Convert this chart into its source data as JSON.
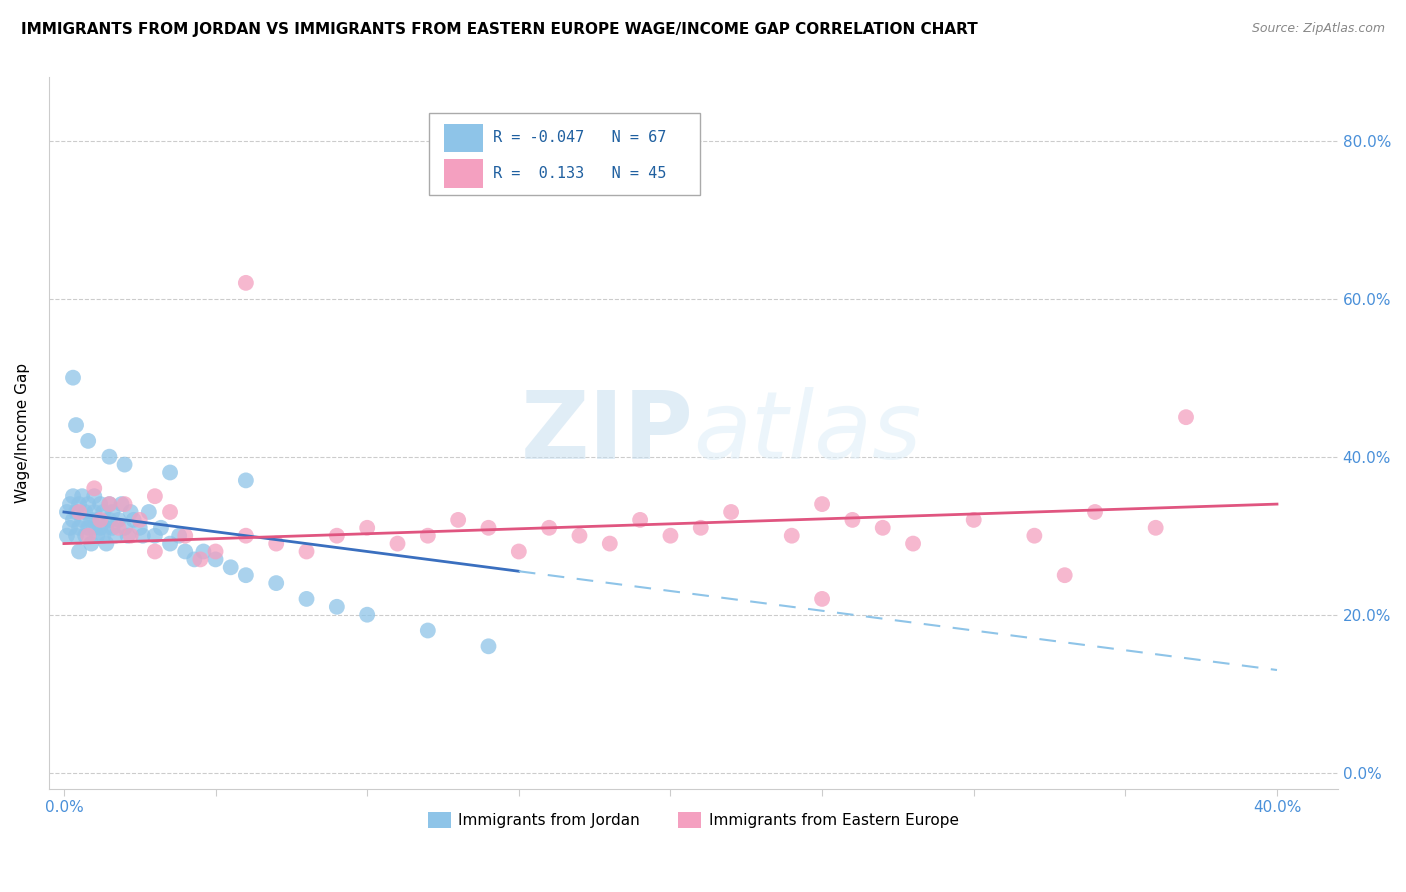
{
  "title": "IMMIGRANTS FROM JORDAN VS IMMIGRANTS FROM EASTERN EUROPE WAGE/INCOME GAP CORRELATION CHART",
  "source": "Source: ZipAtlas.com",
  "ylabel": "Wage/Income Gap",
  "ytick_vals": [
    0.0,
    0.2,
    0.4,
    0.6,
    0.8
  ],
  "ytick_labels": [
    "0.0%",
    "20.0%",
    "40.0%",
    "60.0%",
    "80.0%"
  ],
  "color_jordan": "#8ec4e8",
  "color_eastern": "#f4a0c0",
  "color_jordan_line": "#3a6fbf",
  "color_eastern_line": "#e05580",
  "color_jordan_dash": "#8ec4e8",
  "watermark_color": "#ddeef8",
  "jordan_x": [
    0.001,
    0.001,
    0.002,
    0.002,
    0.003,
    0.003,
    0.004,
    0.004,
    0.005,
    0.005,
    0.005,
    0.006,
    0.006,
    0.007,
    0.007,
    0.008,
    0.008,
    0.009,
    0.009,
    0.01,
    0.01,
    0.01,
    0.011,
    0.011,
    0.012,
    0.012,
    0.013,
    0.013,
    0.014,
    0.014,
    0.015,
    0.015,
    0.016,
    0.016,
    0.017,
    0.018,
    0.019,
    0.02,
    0.021,
    0.022,
    0.023,
    0.025,
    0.026,
    0.028,
    0.03,
    0.032,
    0.035,
    0.038,
    0.04,
    0.043,
    0.046,
    0.05,
    0.055,
    0.06,
    0.07,
    0.08,
    0.09,
    0.1,
    0.12,
    0.14,
    0.003,
    0.004,
    0.008,
    0.015,
    0.02,
    0.035,
    0.06
  ],
  "jordan_y": [
    0.3,
    0.33,
    0.31,
    0.34,
    0.32,
    0.35,
    0.3,
    0.33,
    0.31,
    0.34,
    0.28,
    0.32,
    0.35,
    0.3,
    0.33,
    0.31,
    0.34,
    0.32,
    0.29,
    0.31,
    0.33,
    0.35,
    0.3,
    0.32,
    0.31,
    0.34,
    0.3,
    0.33,
    0.31,
    0.29,
    0.32,
    0.34,
    0.31,
    0.33,
    0.3,
    0.32,
    0.34,
    0.31,
    0.3,
    0.33,
    0.32,
    0.31,
    0.3,
    0.33,
    0.3,
    0.31,
    0.29,
    0.3,
    0.28,
    0.27,
    0.28,
    0.27,
    0.26,
    0.25,
    0.24,
    0.22,
    0.21,
    0.2,
    0.18,
    0.16,
    0.5,
    0.44,
    0.42,
    0.4,
    0.39,
    0.38,
    0.37
  ],
  "eastern_x": [
    0.005,
    0.008,
    0.012,
    0.015,
    0.018,
    0.022,
    0.025,
    0.03,
    0.035,
    0.04,
    0.05,
    0.06,
    0.07,
    0.08,
    0.09,
    0.1,
    0.11,
    0.12,
    0.13,
    0.14,
    0.15,
    0.16,
    0.17,
    0.18,
    0.19,
    0.2,
    0.21,
    0.22,
    0.24,
    0.25,
    0.26,
    0.27,
    0.28,
    0.3,
    0.32,
    0.34,
    0.36,
    0.37,
    0.01,
    0.02,
    0.03,
    0.045,
    0.06,
    0.25,
    0.33
  ],
  "eastern_y": [
    0.33,
    0.3,
    0.32,
    0.34,
    0.31,
    0.3,
    0.32,
    0.35,
    0.33,
    0.3,
    0.28,
    0.3,
    0.29,
    0.28,
    0.3,
    0.31,
    0.29,
    0.3,
    0.32,
    0.31,
    0.28,
    0.31,
    0.3,
    0.29,
    0.32,
    0.3,
    0.31,
    0.33,
    0.3,
    0.34,
    0.32,
    0.31,
    0.29,
    0.32,
    0.3,
    0.33,
    0.31,
    0.45,
    0.36,
    0.34,
    0.28,
    0.27,
    0.62,
    0.22,
    0.25
  ]
}
